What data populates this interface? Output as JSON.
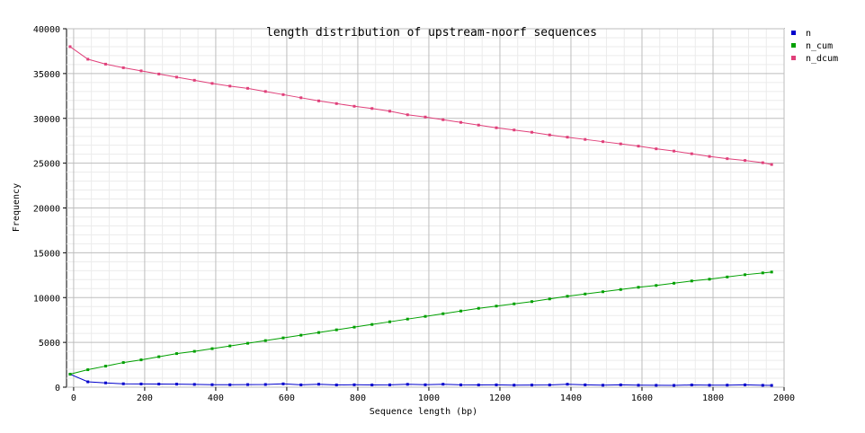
{
  "chart_data": {
    "type": "line",
    "title": "length distribution of upstream-noorf sequences",
    "xlabel": "Sequence length (bp)",
    "ylabel": "Frequency",
    "xlim": [
      -20,
      2000
    ],
    "ylim": [
      0,
      40000
    ],
    "x_ticks": [
      "0",
      "200",
      "400",
      "600",
      "800",
      "1000",
      "1200",
      "1400",
      "1600",
      "1800",
      "2000"
    ],
    "y_ticks": [
      "0",
      "5000",
      "10000",
      "15000",
      "20000",
      "25000",
      "30000",
      "35000",
      "40000"
    ],
    "grid": true,
    "legend_position": "right",
    "x": [
      -10,
      40,
      90,
      140,
      190,
      240,
      290,
      340,
      390,
      440,
      490,
      540,
      590,
      640,
      690,
      740,
      790,
      840,
      890,
      940,
      990,
      1040,
      1090,
      1140,
      1190,
      1240,
      1290,
      1340,
      1390,
      1440,
      1490,
      1540,
      1590,
      1640,
      1690,
      1740,
      1790,
      1840,
      1890,
      1940,
      1965
    ],
    "series": [
      {
        "name": "n",
        "color": "#0000cc",
        "values": [
          1450,
          600,
          480,
          380,
          360,
          350,
          340,
          310,
          280,
          270,
          290,
          300,
          370,
          260,
          330,
          250,
          270,
          250,
          260,
          320,
          270,
          330,
          260,
          250,
          260,
          230,
          240,
          250,
          330,
          260,
          220,
          260,
          220,
          210,
          200,
          250,
          220,
          230,
          260,
          210,
          200
        ]
      },
      {
        "name": "n_cum",
        "color": "#00a000",
        "values": [
          1450,
          1950,
          2350,
          2750,
          3050,
          3400,
          3750,
          4000,
          4300,
          4600,
          4900,
          5200,
          5500,
          5800,
          6100,
          6400,
          6700,
          7000,
          7300,
          7600,
          7900,
          8200,
          8500,
          8800,
          9050,
          9300,
          9550,
          9850,
          10150,
          10400,
          10650,
          10900,
          11150,
          11350,
          11600,
          11850,
          12050,
          12300,
          12550,
          12750,
          12850
        ]
      },
      {
        "name": "n_dcum",
        "color": "#e0407a",
        "values": [
          38000,
          36600,
          36050,
          35650,
          35300,
          34950,
          34600,
          34250,
          33900,
          33600,
          33350,
          33000,
          32650,
          32300,
          31950,
          31650,
          31350,
          31100,
          30800,
          30400,
          30150,
          29850,
          29550,
          29250,
          28950,
          28700,
          28450,
          28150,
          27900,
          27650,
          27400,
          27150,
          26900,
          26600,
          26350,
          26050,
          25750,
          25500,
          25300,
          25050,
          24850
        ]
      }
    ]
  }
}
